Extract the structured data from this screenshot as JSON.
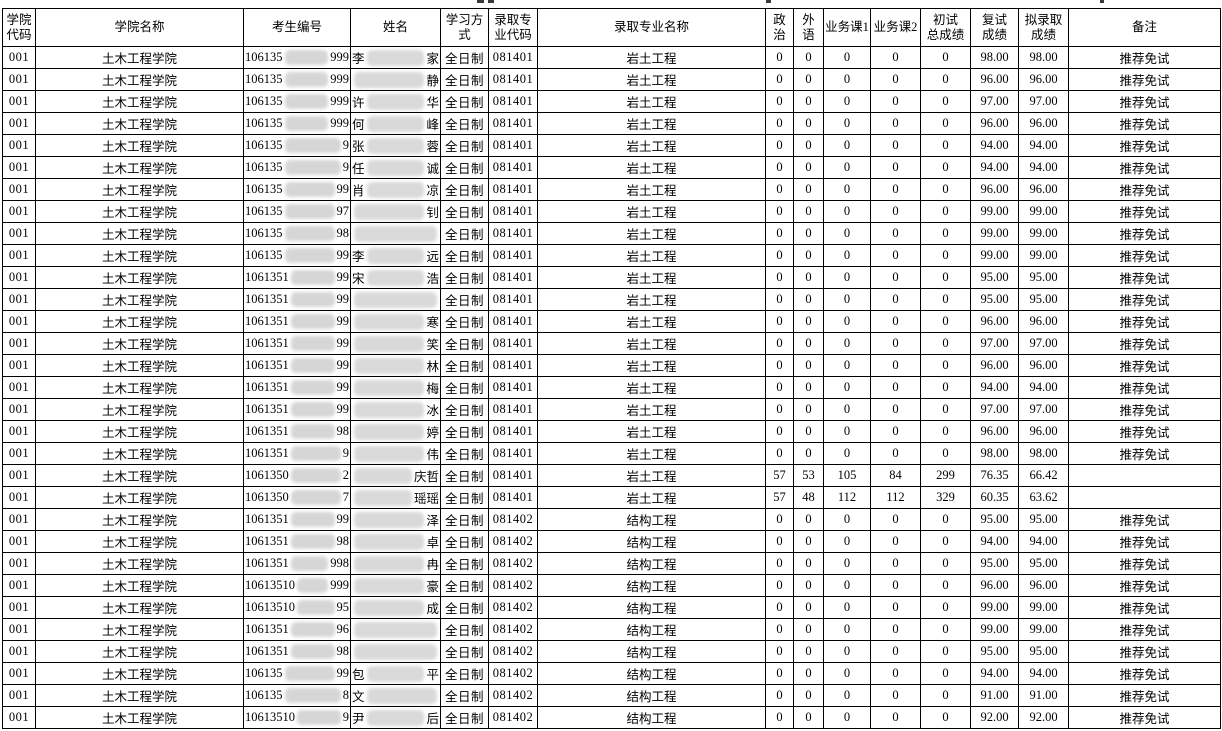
{
  "table": {
    "columns": [
      {
        "key": "college_code",
        "label": "学院\n代码"
      },
      {
        "key": "college_name",
        "label": "学院名称"
      },
      {
        "key": "candidate_no",
        "label": "考生编号"
      },
      {
        "key": "name",
        "label": "姓名"
      },
      {
        "key": "study_mode",
        "label": "学习方式"
      },
      {
        "key": "major_code",
        "label": "录取专\n业代码"
      },
      {
        "key": "major_name",
        "label": "录取专业名称"
      },
      {
        "key": "politics",
        "label": "政\n治"
      },
      {
        "key": "foreign_lang",
        "label": "外\n语"
      },
      {
        "key": "course1",
        "label": "业务课1"
      },
      {
        "key": "course2",
        "label": "业务课2"
      },
      {
        "key": "initial_total",
        "label": "初试\n总成绩"
      },
      {
        "key": "retest_score",
        "label": "复试\n成绩"
      },
      {
        "key": "admit_score",
        "label": "拟录取\n成绩"
      },
      {
        "key": "remark",
        "label": "备注"
      }
    ],
    "rows": [
      {
        "college_code": "001",
        "college_name": "土木工程学院",
        "candidate_no": {
          "pre": "106135",
          "suf": "999"
        },
        "name": {
          "pre": "李",
          "suf": "家"
        },
        "study_mode": "全日制",
        "major_code": "081401",
        "major_name": "岩土工程",
        "politics": "0",
        "foreign_lang": "0",
        "course1": "0",
        "course2": "0",
        "initial_total": "0",
        "retest_score": "98.00",
        "admit_score": "98.00",
        "remark": "推荐免试"
      },
      {
        "college_code": "001",
        "college_name": "土木工程学院",
        "candidate_no": {
          "pre": "106135",
          "suf": "999"
        },
        "name": {
          "pre": "",
          "suf": "静"
        },
        "study_mode": "全日制",
        "major_code": "081401",
        "major_name": "岩土工程",
        "politics": "0",
        "foreign_lang": "0",
        "course1": "0",
        "course2": "0",
        "initial_total": "0",
        "retest_score": "96.00",
        "admit_score": "96.00",
        "remark": "推荐免试"
      },
      {
        "college_code": "001",
        "college_name": "土木工程学院",
        "candidate_no": {
          "pre": "106135",
          "suf": "999"
        },
        "name": {
          "pre": "许",
          "suf": "华"
        },
        "study_mode": "全日制",
        "major_code": "081401",
        "major_name": "岩土工程",
        "politics": "0",
        "foreign_lang": "0",
        "course1": "0",
        "course2": "0",
        "initial_total": "0",
        "retest_score": "97.00",
        "admit_score": "97.00",
        "remark": "推荐免试"
      },
      {
        "college_code": "001",
        "college_name": "土木工程学院",
        "candidate_no": {
          "pre": "106135",
          "suf": "999"
        },
        "name": {
          "pre": "何",
          "suf": "峰"
        },
        "study_mode": "全日制",
        "major_code": "081401",
        "major_name": "岩土工程",
        "politics": "0",
        "foreign_lang": "0",
        "course1": "0",
        "course2": "0",
        "initial_total": "0",
        "retest_score": "96.00",
        "admit_score": "96.00",
        "remark": "推荐免试"
      },
      {
        "college_code": "001",
        "college_name": "土木工程学院",
        "candidate_no": {
          "pre": "106135",
          "suf": "9"
        },
        "name": {
          "pre": "张",
          "suf": "蓉"
        },
        "study_mode": "全日制",
        "major_code": "081401",
        "major_name": "岩土工程",
        "politics": "0",
        "foreign_lang": "0",
        "course1": "0",
        "course2": "0",
        "initial_total": "0",
        "retest_score": "94.00",
        "admit_score": "94.00",
        "remark": "推荐免试"
      },
      {
        "college_code": "001",
        "college_name": "土木工程学院",
        "candidate_no": {
          "pre": "106135",
          "suf": "9"
        },
        "name": {
          "pre": "任",
          "suf": "诚"
        },
        "study_mode": "全日制",
        "major_code": "081401",
        "major_name": "岩土工程",
        "politics": "0",
        "foreign_lang": "0",
        "course1": "0",
        "course2": "0",
        "initial_total": "0",
        "retest_score": "94.00",
        "admit_score": "94.00",
        "remark": "推荐免试"
      },
      {
        "college_code": "001",
        "college_name": "土木工程学院",
        "candidate_no": {
          "pre": "106135",
          "suf": "99"
        },
        "name": {
          "pre": "肖",
          "suf": "凉"
        },
        "study_mode": "全日制",
        "major_code": "081401",
        "major_name": "岩土工程",
        "politics": "0",
        "foreign_lang": "0",
        "course1": "0",
        "course2": "0",
        "initial_total": "0",
        "retest_score": "96.00",
        "admit_score": "96.00",
        "remark": "推荐免试"
      },
      {
        "college_code": "001",
        "college_name": "土木工程学院",
        "candidate_no": {
          "pre": "106135",
          "suf": "97"
        },
        "name": {
          "pre": "",
          "suf": "钊"
        },
        "study_mode": "全日制",
        "major_code": "081401",
        "major_name": "岩土工程",
        "politics": "0",
        "foreign_lang": "0",
        "course1": "0",
        "course2": "0",
        "initial_total": "0",
        "retest_score": "99.00",
        "admit_score": "99.00",
        "remark": "推荐免试"
      },
      {
        "college_code": "001",
        "college_name": "土木工程学院",
        "candidate_no": {
          "pre": "106135",
          "suf": "98"
        },
        "name": {
          "pre": "",
          "suf": ""
        },
        "study_mode": "全日制",
        "major_code": "081401",
        "major_name": "岩土工程",
        "politics": "0",
        "foreign_lang": "0",
        "course1": "0",
        "course2": "0",
        "initial_total": "0",
        "retest_score": "99.00",
        "admit_score": "99.00",
        "remark": "推荐免试"
      },
      {
        "college_code": "001",
        "college_name": "土木工程学院",
        "candidate_no": {
          "pre": "106135",
          "suf": "99"
        },
        "name": {
          "pre": "李",
          "suf": "远"
        },
        "study_mode": "全日制",
        "major_code": "081401",
        "major_name": "岩土工程",
        "politics": "0",
        "foreign_lang": "0",
        "course1": "0",
        "course2": "0",
        "initial_total": "0",
        "retest_score": "99.00",
        "admit_score": "99.00",
        "remark": "推荐免试"
      },
      {
        "college_code": "001",
        "college_name": "土木工程学院",
        "candidate_no": {
          "pre": "1061351",
          "suf": "99"
        },
        "name": {
          "pre": "宋",
          "suf": "浩"
        },
        "study_mode": "全日制",
        "major_code": "081401",
        "major_name": "岩土工程",
        "politics": "0",
        "foreign_lang": "0",
        "course1": "0",
        "course2": "0",
        "initial_total": "0",
        "retest_score": "95.00",
        "admit_score": "95.00",
        "remark": "推荐免试"
      },
      {
        "college_code": "001",
        "college_name": "土木工程学院",
        "candidate_no": {
          "pre": "1061351",
          "suf": "99"
        },
        "name": {
          "pre": "",
          "suf": ""
        },
        "study_mode": "全日制",
        "major_code": "081401",
        "major_name": "岩土工程",
        "politics": "0",
        "foreign_lang": "0",
        "course1": "0",
        "course2": "0",
        "initial_total": "0",
        "retest_score": "95.00",
        "admit_score": "95.00",
        "remark": "推荐免试"
      },
      {
        "college_code": "001",
        "college_name": "土木工程学院",
        "candidate_no": {
          "pre": "1061351",
          "suf": "99"
        },
        "name": {
          "pre": "",
          "suf": "寒"
        },
        "study_mode": "全日制",
        "major_code": "081401",
        "major_name": "岩土工程",
        "politics": "0",
        "foreign_lang": "0",
        "course1": "0",
        "course2": "0",
        "initial_total": "0",
        "retest_score": "96.00",
        "admit_score": "96.00",
        "remark": "推荐免试"
      },
      {
        "college_code": "001",
        "college_name": "土木工程学院",
        "candidate_no": {
          "pre": "1061351",
          "suf": "99"
        },
        "name": {
          "pre": "",
          "suf": "笑"
        },
        "study_mode": "全日制",
        "major_code": "081401",
        "major_name": "岩土工程",
        "politics": "0",
        "foreign_lang": "0",
        "course1": "0",
        "course2": "0",
        "initial_total": "0",
        "retest_score": "97.00",
        "admit_score": "97.00",
        "remark": "推荐免试"
      },
      {
        "college_code": "001",
        "college_name": "土木工程学院",
        "candidate_no": {
          "pre": "1061351",
          "suf": "99"
        },
        "name": {
          "pre": "",
          "suf": "林"
        },
        "study_mode": "全日制",
        "major_code": "081401",
        "major_name": "岩土工程",
        "politics": "0",
        "foreign_lang": "0",
        "course1": "0",
        "course2": "0",
        "initial_total": "0",
        "retest_score": "96.00",
        "admit_score": "96.00",
        "remark": "推荐免试"
      },
      {
        "college_code": "001",
        "college_name": "土木工程学院",
        "candidate_no": {
          "pre": "1061351",
          "suf": "99"
        },
        "name": {
          "pre": "",
          "suf": "梅"
        },
        "study_mode": "全日制",
        "major_code": "081401",
        "major_name": "岩土工程",
        "politics": "0",
        "foreign_lang": "0",
        "course1": "0",
        "course2": "0",
        "initial_total": "0",
        "retest_score": "94.00",
        "admit_score": "94.00",
        "remark": "推荐免试"
      },
      {
        "college_code": "001",
        "college_name": "土木工程学院",
        "candidate_no": {
          "pre": "1061351",
          "suf": "99"
        },
        "name": {
          "pre": "",
          "suf": "冰"
        },
        "study_mode": "全日制",
        "major_code": "081401",
        "major_name": "岩土工程",
        "politics": "0",
        "foreign_lang": "0",
        "course1": "0",
        "course2": "0",
        "initial_total": "0",
        "retest_score": "97.00",
        "admit_score": "97.00",
        "remark": "推荐免试"
      },
      {
        "college_code": "001",
        "college_name": "土木工程学院",
        "candidate_no": {
          "pre": "1061351",
          "suf": "98"
        },
        "name": {
          "pre": "",
          "suf": "婷"
        },
        "study_mode": "全日制",
        "major_code": "081401",
        "major_name": "岩土工程",
        "politics": "0",
        "foreign_lang": "0",
        "course1": "0",
        "course2": "0",
        "initial_total": "0",
        "retest_score": "96.00",
        "admit_score": "96.00",
        "remark": "推荐免试"
      },
      {
        "college_code": "001",
        "college_name": "土木工程学院",
        "candidate_no": {
          "pre": "1061351",
          "suf": "9"
        },
        "name": {
          "pre": "",
          "suf": "伟"
        },
        "study_mode": "全日制",
        "major_code": "081401",
        "major_name": "岩土工程",
        "politics": "0",
        "foreign_lang": "0",
        "course1": "0",
        "course2": "0",
        "initial_total": "0",
        "retest_score": "98.00",
        "admit_score": "98.00",
        "remark": "推荐免试"
      },
      {
        "college_code": "001",
        "college_name": "土木工程学院",
        "candidate_no": {
          "pre": "1061350",
          "suf": "2"
        },
        "name": {
          "pre": "",
          "suf": "庆哲"
        },
        "study_mode": "全日制",
        "major_code": "081401",
        "major_name": "岩土工程",
        "politics": "57",
        "foreign_lang": "53",
        "course1": "105",
        "course2": "84",
        "initial_total": "299",
        "retest_score": "76.35",
        "admit_score": "66.42",
        "remark": ""
      },
      {
        "college_code": "001",
        "college_name": "土木工程学院",
        "candidate_no": {
          "pre": "1061350",
          "suf": "7"
        },
        "name": {
          "pre": "",
          "suf": "瑶瑶"
        },
        "study_mode": "全日制",
        "major_code": "081401",
        "major_name": "岩土工程",
        "politics": "57",
        "foreign_lang": "48",
        "course1": "112",
        "course2": "112",
        "initial_total": "329",
        "retest_score": "60.35",
        "admit_score": "63.62",
        "remark": ""
      },
      {
        "college_code": "001",
        "college_name": "土木工程学院",
        "candidate_no": {
          "pre": "1061351",
          "suf": "99"
        },
        "name": {
          "pre": "",
          "suf": "泽"
        },
        "study_mode": "全日制",
        "major_code": "081402",
        "major_name": "结构工程",
        "politics": "0",
        "foreign_lang": "0",
        "course1": "0",
        "course2": "0",
        "initial_total": "0",
        "retest_score": "95.00",
        "admit_score": "95.00",
        "remark": "推荐免试"
      },
      {
        "college_code": "001",
        "college_name": "土木工程学院",
        "candidate_no": {
          "pre": "1061351",
          "suf": "98"
        },
        "name": {
          "pre": "",
          "suf": "卓"
        },
        "study_mode": "全日制",
        "major_code": "081402",
        "major_name": "结构工程",
        "politics": "0",
        "foreign_lang": "0",
        "course1": "0",
        "course2": "0",
        "initial_total": "0",
        "retest_score": "94.00",
        "admit_score": "94.00",
        "remark": "推荐免试"
      },
      {
        "college_code": "001",
        "college_name": "土木工程学院",
        "candidate_no": {
          "pre": "1061351",
          "suf": "998"
        },
        "name": {
          "pre": "",
          "suf": "冉"
        },
        "study_mode": "全日制",
        "major_code": "081402",
        "major_name": "结构工程",
        "politics": "0",
        "foreign_lang": "0",
        "course1": "0",
        "course2": "0",
        "initial_total": "0",
        "retest_score": "95.00",
        "admit_score": "95.00",
        "remark": "推荐免试"
      },
      {
        "college_code": "001",
        "college_name": "土木工程学院",
        "candidate_no": {
          "pre": "10613510",
          "suf": "999"
        },
        "name": {
          "pre": "",
          "suf": "豪"
        },
        "study_mode": "全日制",
        "major_code": "081402",
        "major_name": "结构工程",
        "politics": "0",
        "foreign_lang": "0",
        "course1": "0",
        "course2": "0",
        "initial_total": "0",
        "retest_score": "96.00",
        "admit_score": "96.00",
        "remark": "推荐免试"
      },
      {
        "college_code": "001",
        "college_name": "土木工程学院",
        "candidate_no": {
          "pre": "10613510",
          "suf": "95"
        },
        "name": {
          "pre": "",
          "suf": "成"
        },
        "study_mode": "全日制",
        "major_code": "081402",
        "major_name": "结构工程",
        "politics": "0",
        "foreign_lang": "0",
        "course1": "0",
        "course2": "0",
        "initial_total": "0",
        "retest_score": "99.00",
        "admit_score": "99.00",
        "remark": "推荐免试"
      },
      {
        "college_code": "001",
        "college_name": "土木工程学院",
        "candidate_no": {
          "pre": "1061351",
          "suf": "96"
        },
        "name": {
          "pre": "",
          "suf": ""
        },
        "study_mode": "全日制",
        "major_code": "081402",
        "major_name": "结构工程",
        "politics": "0",
        "foreign_lang": "0",
        "course1": "0",
        "course2": "0",
        "initial_total": "0",
        "retest_score": "99.00",
        "admit_score": "99.00",
        "remark": "推荐免试"
      },
      {
        "college_code": "001",
        "college_name": "土木工程学院",
        "candidate_no": {
          "pre": "1061351",
          "suf": "98"
        },
        "name": {
          "pre": "",
          "suf": ""
        },
        "study_mode": "全日制",
        "major_code": "081402",
        "major_name": "结构工程",
        "politics": "0",
        "foreign_lang": "0",
        "course1": "0",
        "course2": "0",
        "initial_total": "0",
        "retest_score": "95.00",
        "admit_score": "95.00",
        "remark": "推荐免试"
      },
      {
        "college_code": "001",
        "college_name": "土木工程学院",
        "candidate_no": {
          "pre": "106135",
          "suf": "99"
        },
        "name": {
          "pre": "包",
          "suf": "平"
        },
        "study_mode": "全日制",
        "major_code": "081402",
        "major_name": "结构工程",
        "politics": "0",
        "foreign_lang": "0",
        "course1": "0",
        "course2": "0",
        "initial_total": "0",
        "retest_score": "94.00",
        "admit_score": "94.00",
        "remark": "推荐免试"
      },
      {
        "college_code": "001",
        "college_name": "土木工程学院",
        "candidate_no": {
          "pre": "106135",
          "suf": "8"
        },
        "name": {
          "pre": "文",
          "suf": ""
        },
        "study_mode": "全日制",
        "major_code": "081402",
        "major_name": "结构工程",
        "politics": "0",
        "foreign_lang": "0",
        "course1": "0",
        "course2": "0",
        "initial_total": "0",
        "retest_score": "91.00",
        "admit_score": "91.00",
        "remark": "推荐免试"
      },
      {
        "college_code": "001",
        "college_name": "土木工程学院",
        "candidate_no": {
          "pre": "10613510",
          "suf": "9"
        },
        "name": {
          "pre": "尹",
          "suf": "后"
        },
        "study_mode": "全日制",
        "major_code": "081402",
        "major_name": "结构工程",
        "politics": "0",
        "foreign_lang": "0",
        "course1": "0",
        "course2": "0",
        "initial_total": "0",
        "retest_score": "92.00",
        "admit_score": "92.00",
        "remark": "推荐免试"
      }
    ]
  }
}
